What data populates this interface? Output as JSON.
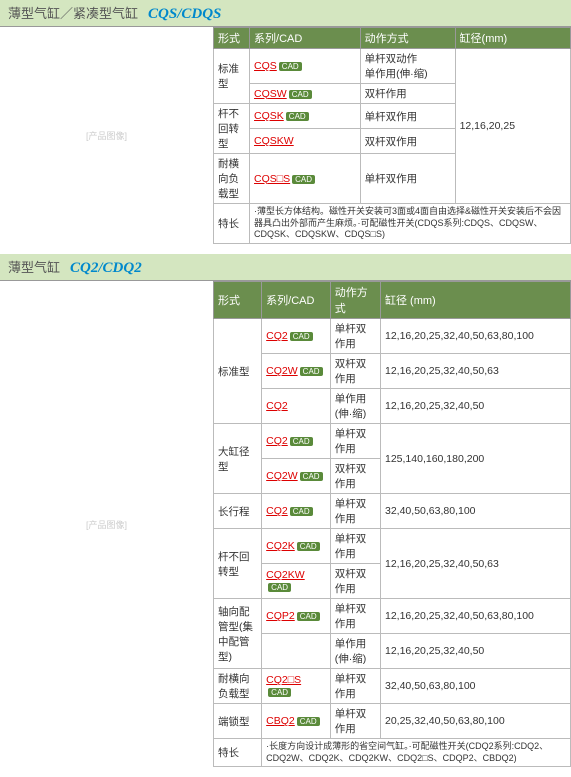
{
  "colors": {
    "header_bg": "#d4e6c0",
    "th_bg": "#6b8e4e",
    "link": "#d00",
    "code": "#0088cc"
  },
  "sections": [
    {
      "title": "薄型气缸／紧凑型气缸",
      "code": "CQS/CDQS",
      "img_placeholder": "[产品图像]",
      "headers": [
        "形式",
        "系列/CAD",
        "动作方式",
        "缸径(mm)"
      ],
      "rows": [
        {
          "type": "标准型",
          "type_rs": 2,
          "series": "CQS",
          "cad": true,
          "action": "单杆双动作\n单作用(伸·缩)",
          "bore": "12,16,20,25",
          "bore_rs": 5
        },
        {
          "series": "CQSW",
          "cad": true,
          "action": "双杆作用"
        },
        {
          "type": "杆不回转型",
          "type_rs": 2,
          "series": "CQSK",
          "cad": true,
          "action": "单杆双作用"
        },
        {
          "series": "CQSKW",
          "action": "双杆双作用"
        },
        {
          "type": "耐横向负载型",
          "series": "CQS□S",
          "cad": true,
          "action": "单杆双作用"
        }
      ],
      "feature_label": "特长",
      "feature_text": "·薄型长方体结构。磁性开关安装可3面或4面自由选择&磁性开关安装后不会因器具凸出外部而产生麻烦。·可配磁性开关(CDQS系列:CDQS、CDQSW、CDQSK、CDQSKW、CDQS□S)"
    },
    {
      "title": "薄型气缸",
      "code": "CQ2/CDQ2",
      "img_placeholder": "[产品图像]",
      "headers": [
        "形式",
        "系列/CAD",
        "动作方式",
        "缸径 (mm)"
      ],
      "rows": [
        {
          "type": "标准型",
          "type_rs": 3,
          "series": "CQ2",
          "cad": true,
          "action": "单杆双作用",
          "bore": "12,16,20,25,32,40,50,63,80,100"
        },
        {
          "series": "CQ2W",
          "cad": true,
          "action": "双杆双作用",
          "bore": "12,16,20,25,32,40,50,63"
        },
        {
          "series": "CQ2",
          "action": "单作用(伸·缩)",
          "bore": "12,16,20,25,32,40,50"
        },
        {
          "type": "大缸径型",
          "type_rs": 2,
          "series": "CQ2",
          "cad": true,
          "action": "单杆双作用",
          "bore": "125,140,160,180,200",
          "bore_rs": 2
        },
        {
          "series": "CQ2W",
          "cad": true,
          "action": "双杆双作用"
        },
        {
          "type": "长行程",
          "series": "CQ2",
          "cad": true,
          "action": "单杆双作用",
          "bore": "32,40,50,63,80,100"
        },
        {
          "type": "杆不回转型",
          "type_rs": 2,
          "series": "CQ2K",
          "cad": true,
          "action": "单杆双作用",
          "bore": "12,16,20,25,32,40,50,63",
          "bore_rs": 2
        },
        {
          "series": "CQ2KW",
          "cad": true,
          "action": "双杆双作用"
        },
        {
          "type": "轴向配管型(集中配管型)",
          "type_rs": 2,
          "series": "CQP2",
          "cad": true,
          "action": "单杆双作用",
          "bore": "12,16,20,25,32,40,50,63,80,100"
        },
        {
          "series": "",
          "action": "单作用(伸·缩)",
          "bore": "12,16,20,25,32,40,50"
        },
        {
          "type": "耐横向负载型",
          "series": "CQ2□S",
          "cad": true,
          "action": "单杆双作用",
          "bore": "32,40,50,63,80,100"
        },
        {
          "type": "端锁型",
          "series": "CBQ2",
          "cad": true,
          "action": "单杆双作用",
          "bore": "20,25,32,40,50,63,80,100"
        }
      ],
      "feature_label": "特长",
      "feature_text": "·长度方向设计成薄形的省空间气缸。·可配磁性开关(CDQ2系列:CDQ2、CDQ2W、CDQ2K、CDQ2KW、CDQ2□S、CDQP2、CBDQ2)"
    }
  ]
}
